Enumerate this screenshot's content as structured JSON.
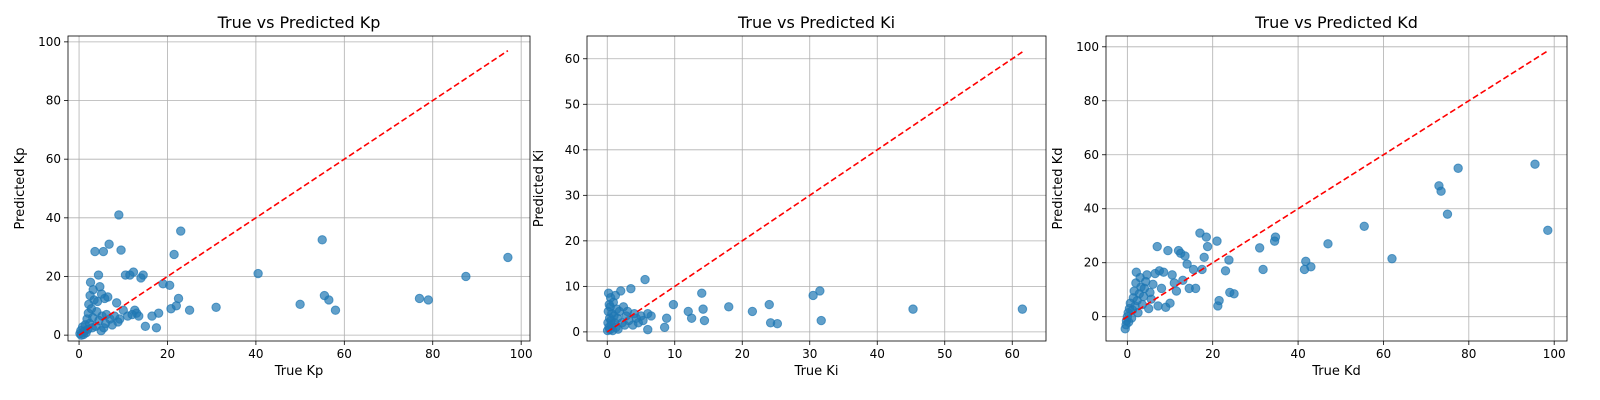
{
  "colors": {
    "scatter": "#1f77b4",
    "reference_line": "#ff0000",
    "grid": "#b0b0b0"
  },
  "chart_data": [
    {
      "type": "scatter",
      "title": "True vs Predicted Kp",
      "xlabel": "True Kp",
      "ylabel": "Predicted Kp",
      "xlim": [
        -2.5,
        102
      ],
      "ylim": [
        -2,
        102
      ],
      "xticks": [
        0,
        20,
        40,
        60,
        80,
        100
      ],
      "yticks": [
        0,
        20,
        40,
        60,
        80,
        100
      ],
      "grid": true,
      "reference_line": {
        "style": "dashed",
        "color": "#ff0000",
        "from": [
          0,
          0
        ],
        "to": [
          97,
          97
        ]
      },
      "series": [
        {
          "points": [
            [
              0.2,
              0.5
            ],
            [
              0.4,
              1.5
            ],
            [
              0.5,
              0
            ],
            [
              0.8,
              2.8
            ],
            [
              1.0,
              0.2
            ],
            [
              1.2,
              1.4
            ],
            [
              1.4,
              3.5
            ],
            [
              1.6,
              0.8
            ],
            [
              1.8,
              5.5
            ],
            [
              2.0,
              2.0
            ],
            [
              2.1,
              7.5
            ],
            [
              2.2,
              10.5
            ],
            [
              2.4,
              4.0
            ],
            [
              2.5,
              13.5
            ],
            [
              2.6,
              18.0
            ],
            [
              2.8,
              9.0
            ],
            [
              3.0,
              2.5
            ],
            [
              3.1,
              6.0
            ],
            [
              3.2,
              15.5
            ],
            [
              3.4,
              12.0
            ],
            [
              3.6,
              28.5
            ],
            [
              3.8,
              3.0
            ],
            [
              4.0,
              8.0
            ],
            [
              4.2,
              11.5
            ],
            [
              4.4,
              20.5
            ],
            [
              4.5,
              5.0
            ],
            [
              4.7,
              16.5
            ],
            [
              5.0,
              1.5
            ],
            [
              5.1,
              14.0
            ],
            [
              5.2,
              6.5
            ],
            [
              5.5,
              28.5
            ],
            [
              5.6,
              2.5
            ],
            [
              5.8,
              12.5
            ],
            [
              6.0,
              4.0
            ],
            [
              6.2,
              7.0
            ],
            [
              6.5,
              13.0
            ],
            [
              6.8,
              31.0
            ],
            [
              7.0,
              5.5
            ],
            [
              7.5,
              3.5
            ],
            [
              8.0,
              6.5
            ],
            [
              8.5,
              11.0
            ],
            [
              8.8,
              4.5
            ],
            [
              9.0,
              41.0
            ],
            [
              9.2,
              5.5
            ],
            [
              9.5,
              29.0
            ],
            [
              10.0,
              8.5
            ],
            [
              10.5,
              20.5
            ],
            [
              11.0,
              6.5
            ],
            [
              11.5,
              20.5
            ],
            [
              12.0,
              7.0
            ],
            [
              12.3,
              21.5
            ],
            [
              12.6,
              8.5
            ],
            [
              13.0,
              7.5
            ],
            [
              13.5,
              6.5
            ],
            [
              14.0,
              19.5
            ],
            [
              14.5,
              20.5
            ],
            [
              15.0,
              3.0
            ],
            [
              16.5,
              6.5
            ],
            [
              17.5,
              2.5
            ],
            [
              18.0,
              7.5
            ],
            [
              19.0,
              17.5
            ],
            [
              20.5,
              17.0
            ],
            [
              20.8,
              9.0
            ],
            [
              21.5,
              27.5
            ],
            [
              22.0,
              10.0
            ],
            [
              22.5,
              12.5
            ],
            [
              23.0,
              35.5
            ],
            [
              25.0,
              8.5
            ],
            [
              31.0,
              9.5
            ],
            [
              40.5,
              21.0
            ],
            [
              50.0,
              10.5
            ],
            [
              55.0,
              32.5
            ],
            [
              55.5,
              13.5
            ],
            [
              56.5,
              12.0
            ],
            [
              58.0,
              8.5
            ],
            [
              77.0,
              12.5
            ],
            [
              79.0,
              12.0
            ],
            [
              87.5,
              20.0
            ],
            [
              97.0,
              26.5
            ]
          ]
        }
      ]
    },
    {
      "type": "scatter",
      "title": "True vs Predicted Ki",
      "xlabel": "True Ki",
      "ylabel": "Predicted Ki",
      "xlim": [
        -3,
        65
      ],
      "ylim": [
        -2,
        65
      ],
      "xticks": [
        0,
        10,
        20,
        30,
        40,
        50,
        60
      ],
      "yticks": [
        0,
        10,
        20,
        30,
        40,
        50,
        60
      ],
      "grid": true,
      "reference_line": {
        "style": "dashed",
        "color": "#ff0000",
        "from": [
          0,
          0
        ],
        "to": [
          61.5,
          61.5
        ]
      },
      "series": [
        {
          "points": [
            [
              0.05,
              0.3
            ],
            [
              0.1,
              2.0
            ],
            [
              0.15,
              4.5
            ],
            [
              0.2,
              8.5
            ],
            [
              0.25,
              1.0
            ],
            [
              0.3,
              6.0
            ],
            [
              0.35,
              3.0
            ],
            [
              0.4,
              0.5
            ],
            [
              0.45,
              5.5
            ],
            [
              0.5,
              7.5
            ],
            [
              0.55,
              2.5
            ],
            [
              0.6,
              1.5
            ],
            [
              0.7,
              4.0
            ],
            [
              0.8,
              0.3
            ],
            [
              0.9,
              6.5
            ],
            [
              1.0,
              3.5
            ],
            [
              1.1,
              2.0
            ],
            [
              1.2,
              8.0
            ],
            [
              1.3,
              1.0
            ],
            [
              1.4,
              5.0
            ],
            [
              1.5,
              3.0
            ],
            [
              1.6,
              0.6
            ],
            [
              1.8,
              4.5
            ],
            [
              2.0,
              9.0
            ],
            [
              2.2,
              2.0
            ],
            [
              2.4,
              5.5
            ],
            [
              2.6,
              1.5
            ],
            [
              2.8,
              3.5
            ],
            [
              3.0,
              4.5
            ],
            [
              3.2,
              2.5
            ],
            [
              3.5,
              9.5
            ],
            [
              3.8,
              1.5
            ],
            [
              4.0,
              4.0
            ],
            [
              4.3,
              3.0
            ],
            [
              4.6,
              2.0
            ],
            [
              5.0,
              3.5
            ],
            [
              5.3,
              2.5
            ],
            [
              5.6,
              11.5
            ],
            [
              6.0,
              4.0
            ],
            [
              6.5,
              3.5
            ],
            [
              6.0,
              0.5
            ],
            [
              8.5,
              1.0
            ],
            [
              8.8,
              3.0
            ],
            [
              9.8,
              6.0
            ],
            [
              12.0,
              4.5
            ],
            [
              12.5,
              3.0
            ],
            [
              14.0,
              8.5
            ],
            [
              14.2,
              5.0
            ],
            [
              14.4,
              2.5
            ],
            [
              18.0,
              5.5
            ],
            [
              21.5,
              4.5
            ],
            [
              24.0,
              6.0
            ],
            [
              24.2,
              2.0
            ],
            [
              25.2,
              1.8
            ],
            [
              30.5,
              8.0
            ],
            [
              31.5,
              9.0
            ],
            [
              31.7,
              2.5
            ],
            [
              45.3,
              5.0
            ],
            [
              61.5,
              5.0
            ]
          ]
        }
      ]
    },
    {
      "type": "scatter",
      "title": "True vs Predicted Kd",
      "xlabel": "True Kd",
      "ylabel": "Predicted Kd",
      "xlim": [
        -5,
        103
      ],
      "ylim": [
        -9,
        104
      ],
      "xticks": [
        0,
        20,
        40,
        60,
        80,
        100
      ],
      "yticks": [
        0,
        20,
        40,
        60,
        80,
        100
      ],
      "grid": true,
      "reference_line": {
        "style": "dashed",
        "color": "#ff0000",
        "from": [
          -1,
          -1
        ],
        "to": [
          98.5,
          98.5
        ]
      },
      "series": [
        {
          "points": [
            [
              -0.5,
              -4.5
            ],
            [
              -0.3,
              -3.0
            ],
            [
              -0.2,
              -1.5
            ],
            [
              0.0,
              0.0
            ],
            [
              0.2,
              1.5
            ],
            [
              0.3,
              -2.0
            ],
            [
              0.5,
              3.0
            ],
            [
              0.7,
              5.0
            ],
            [
              1.0,
              -0.5
            ],
            [
              1.2,
              2.5
            ],
            [
              1.4,
              7.0
            ],
            [
              1.6,
              9.5
            ],
            [
              1.8,
              4.0
            ],
            [
              2.0,
              12.5
            ],
            [
              2.1,
              16.5
            ],
            [
              2.3,
              6.0
            ],
            [
              2.5,
              1.5
            ],
            [
              2.8,
              8.5
            ],
            [
              3.0,
              14.5
            ],
            [
              3.2,
              11.0
            ],
            [
              3.5,
              4.5
            ],
            [
              3.8,
              7.5
            ],
            [
              4.0,
              10.5
            ],
            [
              4.3,
              13.0
            ],
            [
              4.6,
              15.5
            ],
            [
              5.0,
              3.0
            ],
            [
              5.3,
              9.0
            ],
            [
              5.6,
              6.5
            ],
            [
              6.0,
              12.0
            ],
            [
              6.5,
              16.0
            ],
            [
              7.0,
              26.0
            ],
            [
              7.2,
              4.0
            ],
            [
              7.5,
              17.0
            ],
            [
              8.0,
              10.5
            ],
            [
              8.5,
              16.5
            ],
            [
              9.0,
              3.5
            ],
            [
              9.5,
              24.5
            ],
            [
              10.0,
              5.0
            ],
            [
              10.5,
              15.5
            ],
            [
              11.0,
              12.5
            ],
            [
              11.5,
              9.5
            ],
            [
              12.0,
              24.5
            ],
            [
              12.5,
              23.5
            ],
            [
              13.0,
              13.5
            ],
            [
              13.5,
              22.5
            ],
            [
              14.0,
              19.5
            ],
            [
              14.5,
              10.5
            ],
            [
              15.5,
              17.5
            ],
            [
              16.0,
              10.5
            ],
            [
              17.0,
              31.0
            ],
            [
              17.5,
              17.5
            ],
            [
              18.0,
              22.0
            ],
            [
              18.5,
              29.5
            ],
            [
              18.8,
              26.0
            ],
            [
              21.0,
              28.0
            ],
            [
              21.2,
              4.0
            ],
            [
              21.5,
              6.0
            ],
            [
              23.0,
              17.0
            ],
            [
              23.8,
              21.0
            ],
            [
              24.0,
              9.0
            ],
            [
              25.0,
              8.5
            ],
            [
              31.0,
              25.5
            ],
            [
              31.8,
              17.5
            ],
            [
              34.5,
              28.0
            ],
            [
              34.7,
              29.5
            ],
            [
              41.5,
              17.5
            ],
            [
              41.8,
              20.5
            ],
            [
              43.0,
              18.5
            ],
            [
              47.0,
              27.0
            ],
            [
              55.5,
              33.5
            ],
            [
              62.0,
              21.5
            ],
            [
              73.0,
              48.5
            ],
            [
              73.5,
              46.5
            ],
            [
              75.0,
              38.0
            ],
            [
              77.5,
              55.0
            ],
            [
              95.5,
              56.5
            ],
            [
              98.5,
              32.0
            ]
          ]
        }
      ]
    }
  ]
}
